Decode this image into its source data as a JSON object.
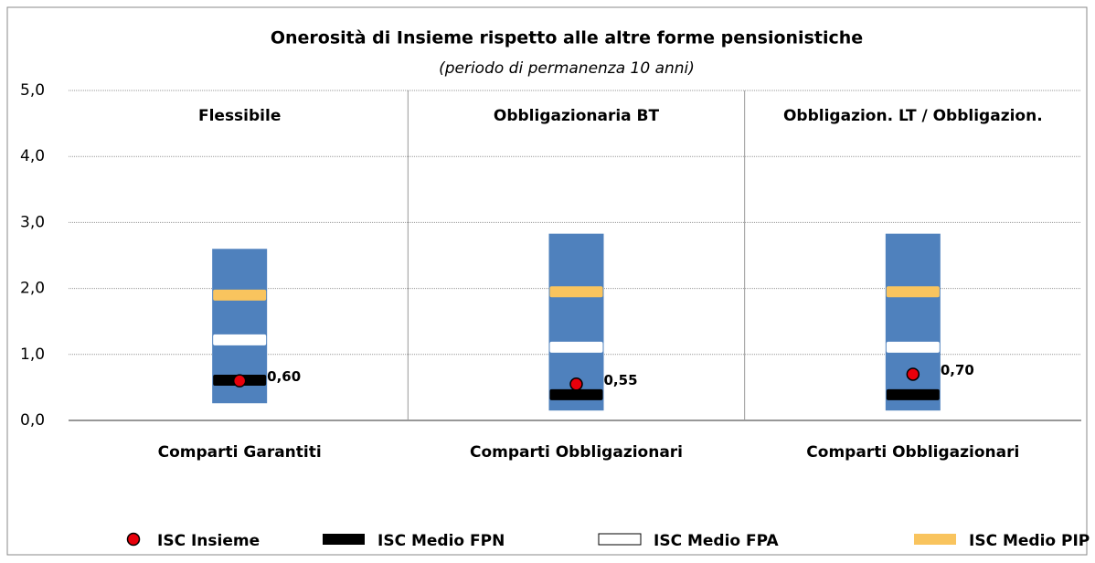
{
  "chart_data": {
    "type": "range-marker",
    "title": "Onerosità di Insieme rispetto alle altre forme pensionistiche",
    "subtitle": "(periodo di permanenza 10 anni)",
    "panels": [
      "Flessibile",
      "Obbligazionaria BT",
      "Obbligazion. LT / Obbligazion."
    ],
    "categories": [
      "Comparti Garantiti",
      "Comparti Obbligazionari",
      "Comparti Obbligazionari"
    ],
    "ylim": [
      0,
      5
    ],
    "yticks": [
      {
        "value": 0,
        "label": "0,0"
      },
      {
        "value": 1,
        "label": "1,0"
      },
      {
        "value": 2,
        "label": "2,0"
      },
      {
        "value": 3,
        "label": "3,0"
      },
      {
        "value": 4,
        "label": "4,0"
      },
      {
        "value": 5,
        "label": "5,0"
      }
    ],
    "grid": true,
    "range": {
      "color": "#4f81bd",
      "low": [
        0.26,
        0.15,
        0.15
      ],
      "high": [
        2.6,
        2.83,
        2.83
      ]
    },
    "series": [
      {
        "name": "ISC Insieme",
        "color": "#e8000b",
        "marker": "circle",
        "values": [
          0.6,
          0.55,
          0.7
        ],
        "value_labels": [
          "0,60",
          "0,55",
          "0,70"
        ]
      },
      {
        "name": "ISC Medio FPN",
        "color": "#000000",
        "marker": "dash",
        "values": [
          0.61,
          0.39,
          0.39
        ]
      },
      {
        "name": "ISC Medio FPA",
        "color": "#ffffff",
        "marker": "dash",
        "values": [
          1.22,
          1.11,
          1.11
        ]
      },
      {
        "name": "ISC Medio PIP",
        "color": "#f9c45e",
        "marker": "dash",
        "values": [
          1.9,
          1.95,
          1.95
        ]
      }
    ]
  }
}
